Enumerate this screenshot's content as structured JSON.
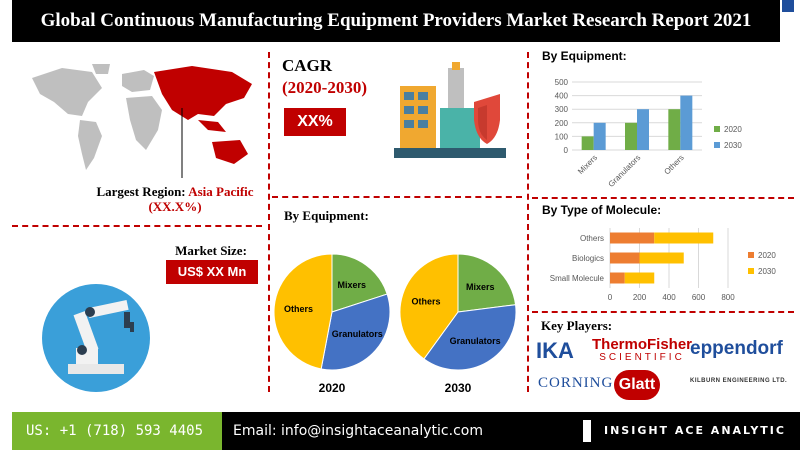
{
  "header": {
    "title": "Global Continuous Manufacturing Equipment Providers Market Research Report 2021"
  },
  "region": {
    "label": "Largest Region:",
    "value": "Asia Pacific (XX.X%)"
  },
  "cagr": {
    "label": "CAGR",
    "period": "(2020-2030)",
    "value": "XX%"
  },
  "market_size": {
    "label": "Market Size:",
    "value": "US$ XX Mn"
  },
  "pies_section": {
    "title": "By Equipment:"
  },
  "key_players": {
    "title": "Key Players:",
    "logos": [
      "IKA",
      "ThermoFisher",
      "SCIENTIFIC",
      "eppendorf",
      "CORNING",
      "Glatt",
      "KILBURN ENGINEERING LTD."
    ]
  },
  "footer": {
    "phone": "US: +1 (718) 593 4405",
    "email": "Email: info@insightaceanalytic.com",
    "brand": "INSIGHT ACE ANALYTIC"
  },
  "colors": {
    "c2020": "#70ad47",
    "c2030": "#5b9bd5",
    "granulators": "#4472c4",
    "others": "#ffc000",
    "mixers": "#70ad47",
    "accent": "#c00000"
  },
  "chart_data": [
    {
      "type": "bar",
      "title": "By Equipment:",
      "categories": [
        "Mixers",
        "Granulators",
        "Others"
      ],
      "series": [
        {
          "name": "2020",
          "values": [
            100,
            200,
            300
          ],
          "color": "#70ad47"
        },
        {
          "name": "2030",
          "values": [
            200,
            300,
            400
          ],
          "color": "#5b9bd5"
        }
      ],
      "ylim": [
        0,
        500
      ],
      "yticks": [
        0,
        100,
        200,
        300,
        400,
        500
      ],
      "legend": "right"
    },
    {
      "type": "bar",
      "orientation": "horizontal",
      "stacked": true,
      "title": "By Type of Molecule:",
      "categories": [
        "Others",
        "Biologics",
        "Small Molecule"
      ],
      "series": [
        {
          "name": "2020",
          "values": [
            300,
            200,
            100
          ],
          "color": "#ed7d31"
        },
        {
          "name": "2030",
          "values": [
            400,
            300,
            200
          ],
          "color": "#ffc000"
        }
      ],
      "xlim": [
        0,
        800
      ],
      "xticks": [
        0,
        200,
        400,
        600,
        800
      ],
      "legend": "right"
    },
    {
      "type": "pie",
      "label": "2020",
      "slices": [
        {
          "name": "Mixers",
          "value": 20,
          "color": "#70ad47"
        },
        {
          "name": "Granulators",
          "value": 33,
          "color": "#4472c4"
        },
        {
          "name": "Others",
          "value": 47,
          "color": "#ffc000"
        }
      ]
    },
    {
      "type": "pie",
      "label": "2030",
      "slices": [
        {
          "name": "Mixers",
          "value": 23,
          "color": "#70ad47"
        },
        {
          "name": "Granulators",
          "value": 37,
          "color": "#4472c4"
        },
        {
          "name": "Others",
          "value": 40,
          "color": "#ffc000"
        }
      ]
    }
  ]
}
